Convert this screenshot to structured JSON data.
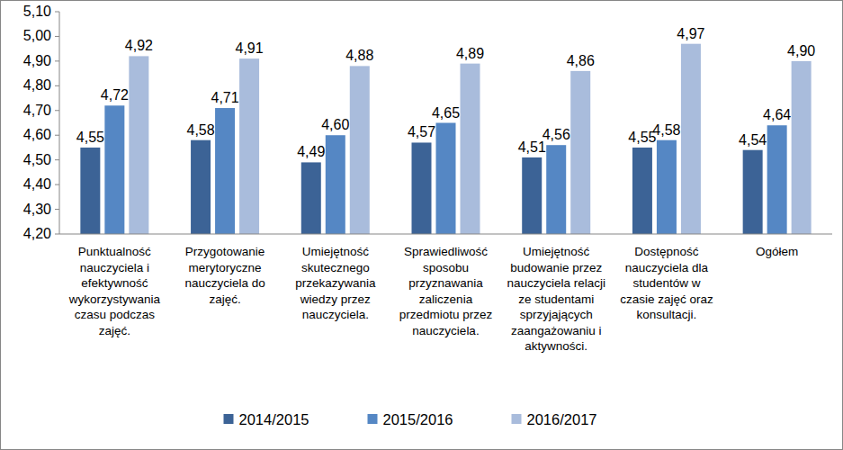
{
  "chart_data": {
    "type": "bar",
    "categories": [
      "Punktualność nauczyciela i efektywność wykorzystywania czasu podczas zajęć.",
      "Przygotowanie merytoryczne nauczyciela do zajęć.",
      "Umiejętność skutecznego przekazywania wiedzy przez nauczyciela.",
      "Sprawiedliwość sposobu przyznawania zaliczenia przedmiotu przez nauczyciela.",
      "Umiejętność budowanie przez nauczyciela relacji ze studentami sprzyjających zaangażowaniu i aktywności.",
      "Dostępność nauczyciela dla studentów w czasie zajęć oraz konsultacji.",
      "Ogółem"
    ],
    "series": [
      {
        "name": "2014/2015",
        "color": "#3c6396",
        "values": [
          4.55,
          4.58,
          4.49,
          4.57,
          4.51,
          4.55,
          4.54
        ],
        "value_labels": [
          "4,55",
          "4,58",
          "4,49",
          "4,57",
          "4,51",
          "4,55",
          "4,54"
        ]
      },
      {
        "name": "2015/2016",
        "color": "#5587c4",
        "values": [
          4.72,
          4.71,
          4.6,
          4.65,
          4.56,
          4.58,
          4.64
        ],
        "value_labels": [
          "4,72",
          "4,71",
          "4,60",
          "4,65",
          "4,56",
          "4,58",
          "4,64"
        ]
      },
      {
        "name": "2016/2017",
        "color": "#a9bcdc",
        "values": [
          4.92,
          4.91,
          4.88,
          4.89,
          4.86,
          4.97,
          4.9
        ],
        "value_labels": [
          "4,92",
          "4,91",
          "4,88",
          "4,89",
          "4,86",
          "4,97",
          "4,90"
        ]
      }
    ],
    "ylim": [
      4.2,
      5.1
    ],
    "yticks": [
      {
        "value": 4.2,
        "label": "4,20"
      },
      {
        "value": 4.3,
        "label": "4,30"
      },
      {
        "value": 4.4,
        "label": "4,40"
      },
      {
        "value": 4.5,
        "label": "4,50"
      },
      {
        "value": 4.6,
        "label": "4,60"
      },
      {
        "value": 4.7,
        "label": "4,70"
      },
      {
        "value": 4.8,
        "label": "4,80"
      },
      {
        "value": 4.9,
        "label": "4,90"
      },
      {
        "value": 5.0,
        "label": "5,00"
      },
      {
        "value": 5.1,
        "label": "5,10"
      }
    ],
    "grid": false,
    "legend": "bottom",
    "data_labels": true
  }
}
